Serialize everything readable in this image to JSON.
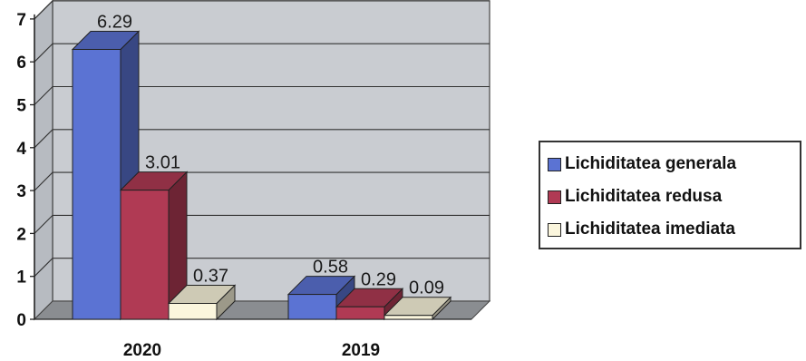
{
  "chart_data": {
    "type": "bar",
    "title": "",
    "xlabel": "",
    "ylabel": "",
    "categories": [
      "2020",
      "2019"
    ],
    "series": [
      {
        "name": "Lichiditatea generala",
        "values": [
          6.29,
          0.58
        ],
        "labels": [
          "6.29",
          "0.58"
        ],
        "color": "#5b73d3"
      },
      {
        "name": "Lichiditatea redusa",
        "values": [
          3.01,
          0.29
        ],
        "labels": [
          "3.01",
          "0.29"
        ],
        "color": "#b03a54"
      },
      {
        "name": "Lichiditatea imediata",
        "values": [
          0.37,
          0.09
        ],
        "labels": [
          "0.37",
          "0.09"
        ],
        "color": "#fbf6dd"
      }
    ],
    "ylim": [
      0,
      7
    ],
    "yticks": [
      "0",
      "1",
      "2",
      "3",
      "4",
      "5",
      "6",
      "7"
    ],
    "grid": true,
    "legend_position": "right",
    "style": "3d"
  }
}
